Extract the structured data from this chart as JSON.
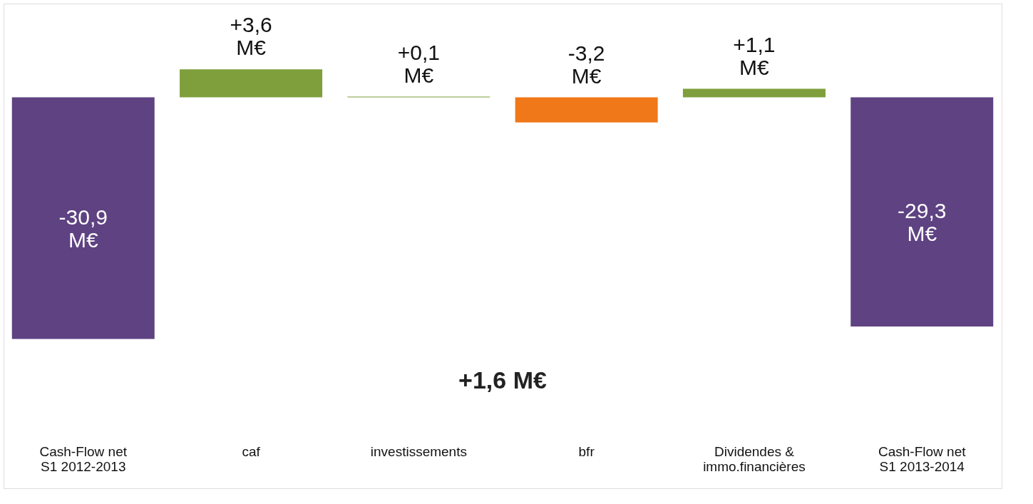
{
  "chart_data": {
    "type": "bar",
    "categories": [
      "Cash-Flow net\nS1 2012-2013",
      "caf",
      "investissements",
      "bfr",
      "Dividendes &\nimmo.financières",
      "Cash-Flow net\nS1 2013-2014"
    ],
    "values": [
      -30.9,
      3.6,
      0.1,
      -3.2,
      1.1,
      -29.3
    ],
    "colors": [
      "#5e4282",
      "#7f9f3c",
      "#7f9f3c",
      "#f07818",
      "#7f9f3c",
      "#5e4282"
    ],
    "value_labels": [
      "-30,9 M€",
      "+3,6 M€",
      "+0,1 M€",
      "-3,2 M€",
      "+1,1 M€",
      "-29,3 M€"
    ],
    "ylim": [
      -50,
      12
    ],
    "tick_labels": false,
    "annotations": [
      "+1,6 M€"
    ]
  }
}
